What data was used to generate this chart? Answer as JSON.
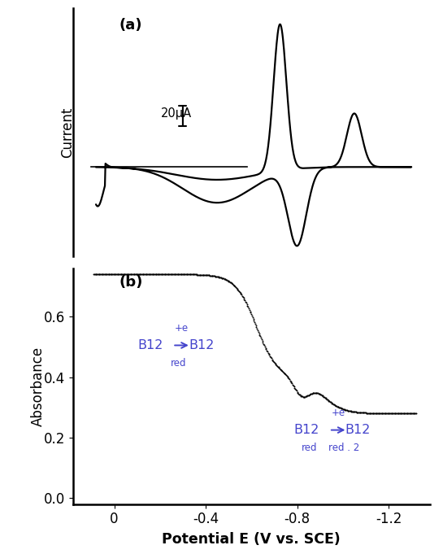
{
  "fig_width": 5.45,
  "fig_height": 6.81,
  "dpi": 100,
  "bg_color": "#ffffff",
  "panel_a_label": "(a)",
  "panel_b_label": "(b)",
  "scalebar_text": "20μA",
  "ylabel_a": "Current",
  "ylabel_b": "Absorbance",
  "xlabel_b": "Potential E (V vs. SCE)",
  "xticks": [
    0,
    -0.4,
    -0.8,
    -1.2
  ],
  "xticklabels": [
    "0",
    "-0.4",
    "-0.8",
    "-1.2"
  ],
  "ylim_b": [
    -0.02,
    0.76
  ],
  "yticks_b": [
    0.0,
    0.2,
    0.4,
    0.6
  ],
  "yticklabels_b": [
    "0.0",
    "0.2",
    "0.4",
    "0.6"
  ],
  "annotation_color": "#4444cc",
  "line_color": "#000000"
}
